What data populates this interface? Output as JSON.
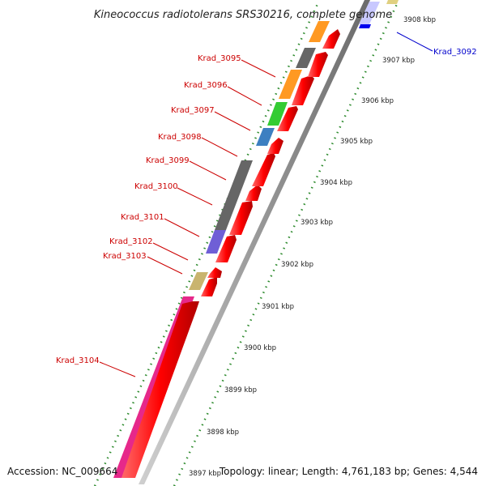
{
  "title": "Kineococcus radiotolerans SRS30216, complete genome",
  "accession_text": "Accession: NC_009664",
  "summary_text": "Topology: linear; Length: 4,761,183 bp; Genes: 4,544",
  "colors": {
    "backbone": "#9a9a9a",
    "forward_arrow": "#ff0000",
    "label_red": "#cc0000",
    "label_blue": "#0000cc",
    "dotted_line": "#2e8b2e"
  },
  "gene_labels": [
    {
      "id": "Krad_3092",
      "color": "blue"
    },
    {
      "id": "Krad_3095",
      "color": "red"
    },
    {
      "id": "Krad_3096",
      "color": "red"
    },
    {
      "id": "Krad_3097",
      "color": "red"
    },
    {
      "id": "Krad_3098",
      "color": "red"
    },
    {
      "id": "Krad_3099",
      "color": "red"
    },
    {
      "id": "Krad_3100",
      "color": "red"
    },
    {
      "id": "Krad_3101",
      "color": "red"
    },
    {
      "id": "Krad_3102",
      "color": "red"
    },
    {
      "id": "Krad_3103",
      "color": "red"
    },
    {
      "id": "Krad_3104",
      "color": "red"
    }
  ],
  "ticks": [
    "3908 kbp",
    "3907 kbp",
    "3906 kbp",
    "3905 kbp",
    "3904 kbp",
    "3903 kbp",
    "3902 kbp",
    "3901 kbp",
    "3900 kbp",
    "3899 kbp",
    "3898 kbp",
    "3897 kbp"
  ]
}
